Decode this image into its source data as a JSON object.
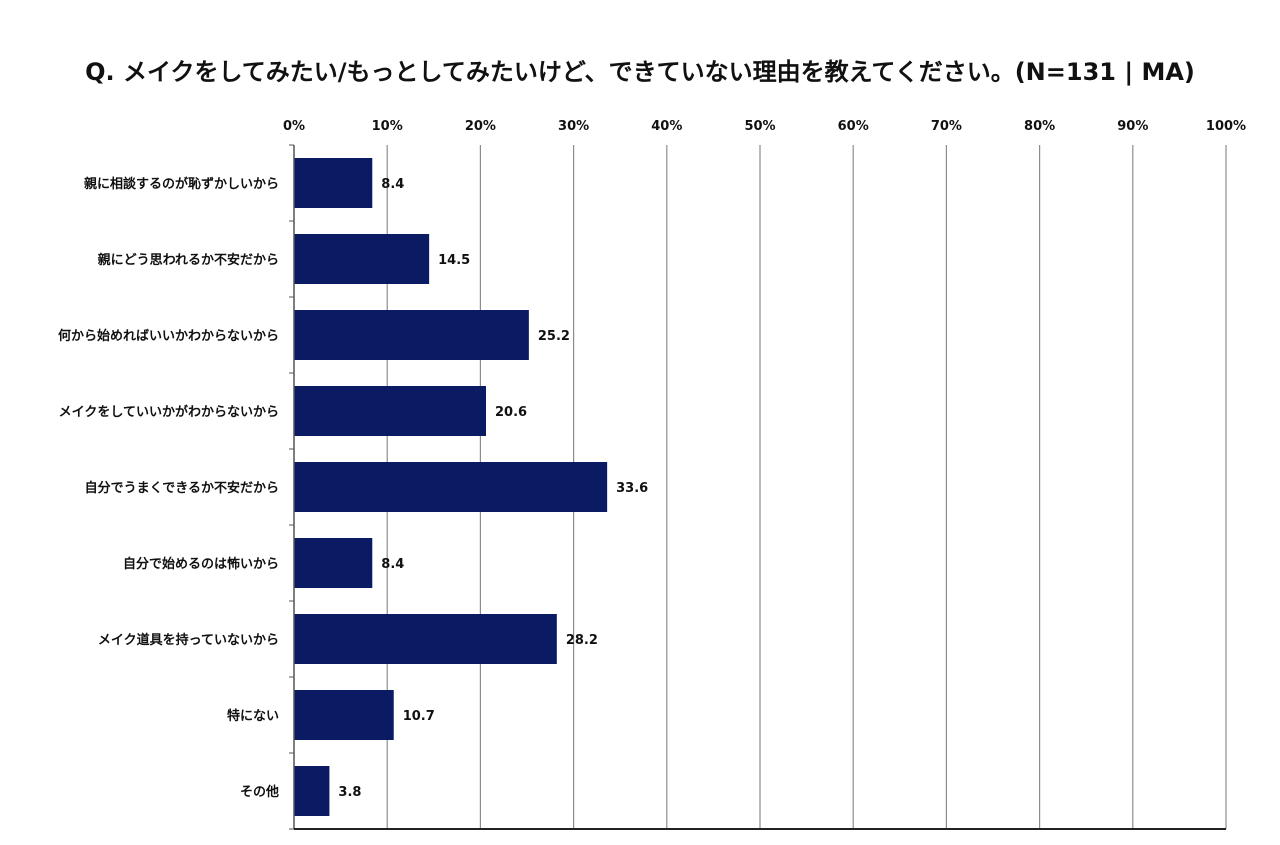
{
  "chart_data": {
    "type": "bar",
    "orientation": "horizontal",
    "title": "Q. メイクをしてみたい/もっとしてみたいけど、できていない理由を教えてください。(N=131 | MA)",
    "categories": [
      "親に相談するのが恥ずかしいから",
      "親にどう思われるか不安だから",
      "何から始めればいいかわからないから",
      "メイクをしていいかがわからないから",
      "自分でうまくできるか不安だから",
      "自分で始めるのは怖いから",
      "メイク道具を持っていないから",
      "特にない",
      "その他"
    ],
    "values": [
      8.4,
      14.5,
      25.2,
      20.6,
      33.6,
      8.4,
      28.2,
      10.7,
      3.8
    ],
    "value_labels": [
      "8.4",
      "14.5",
      "25.2",
      "20.6",
      "33.6",
      "8.4",
      "28.2",
      "10.7",
      "3.8"
    ],
    "xlim": [
      0,
      100
    ],
    "xticks": [
      0,
      10,
      20,
      30,
      40,
      50,
      60,
      70,
      80,
      90,
      100
    ],
    "xtick_labels": [
      "0%",
      "10%",
      "20%",
      "30%",
      "40%",
      "50%",
      "60%",
      "70%",
      "80%",
      "90%",
      "100%"
    ],
    "axis_position": "top",
    "grid": true,
    "bar_color": "#0a1a63",
    "grid_color": "#8c8c8c"
  }
}
